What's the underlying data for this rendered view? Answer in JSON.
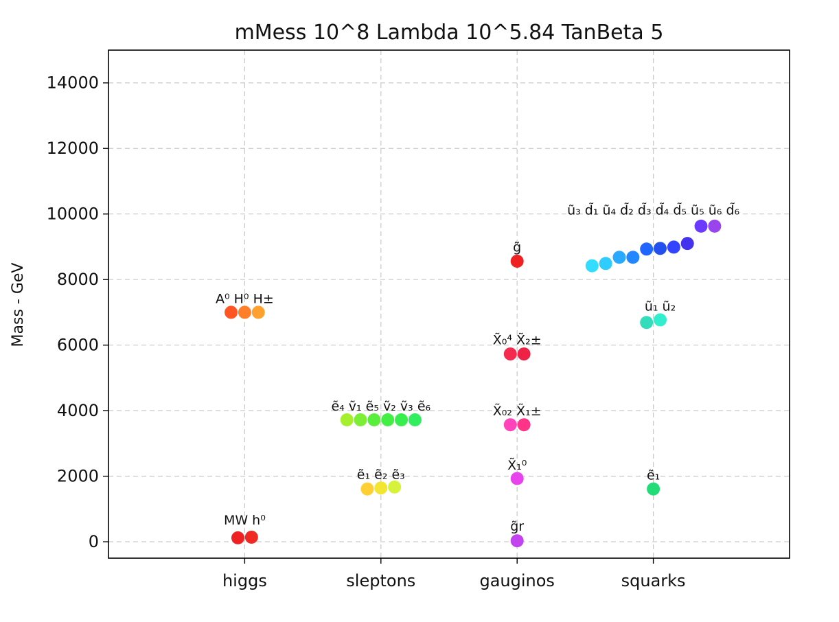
{
  "chart_data": {
    "type": "scatter",
    "title": "mMess  10^8 Lambda 10^5.84 TanBeta 5",
    "ylabel": "Mass - GeV",
    "xlabel": "",
    "categories": [
      "higgs",
      "sleptons",
      "gauginos",
      "squarks"
    ],
    "xlim": [
      -1,
      4
    ],
    "ylim": [
      -500,
      15000
    ],
    "yticks": [
      0,
      2000,
      4000,
      6000,
      8000,
      10000,
      12000,
      14000
    ],
    "grid": true,
    "groups": [
      {
        "category": "higgs",
        "labels": [
          {
            "text": "A⁰ H⁰ H±",
            "x": 0.0,
            "y": 7280
          },
          {
            "text": "MW h⁰",
            "x": 0.0,
            "y": 530
          }
        ],
        "points": [
          {
            "x": -0.1,
            "y": 7000,
            "color": "#ff5522"
          },
          {
            "x": 0.0,
            "y": 7000,
            "color": "#ff7f2a"
          },
          {
            "x": 0.1,
            "y": 7000,
            "color": "#ffa12e"
          },
          {
            "x": -0.05,
            "y": 120,
            "color": "#ee2222"
          },
          {
            "x": 0.05,
            "y": 140,
            "color": "#ee2a22"
          }
        ]
      },
      {
        "category": "sleptons",
        "labels": [
          {
            "text": "ẽ₄ ṽ₁ ẽ₅ ṽ₂ ṽ₃ ẽ₆",
            "x": 1.0,
            "y": 4000
          },
          {
            "text": "ẽ₁ ẽ₂ ẽ₃",
            "x": 1.0,
            "y": 1920
          }
        ],
        "points": [
          {
            "x": 0.75,
            "y": 3720,
            "color": "#a6ef2e"
          },
          {
            "x": 0.85,
            "y": 3720,
            "color": "#7bee35"
          },
          {
            "x": 0.95,
            "y": 3720,
            "color": "#5aee3c"
          },
          {
            "x": 1.05,
            "y": 3720,
            "color": "#44ee44"
          },
          {
            "x": 1.15,
            "y": 3720,
            "color": "#38ee4f"
          },
          {
            "x": 1.25,
            "y": 3720,
            "color": "#30ee5e"
          },
          {
            "x": 0.9,
            "y": 1610,
            "color": "#ffcf33"
          },
          {
            "x": 1.0,
            "y": 1640,
            "color": "#f2e633"
          },
          {
            "x": 1.1,
            "y": 1670,
            "color": "#d6f23a"
          }
        ]
      },
      {
        "category": "gauginos",
        "labels": [
          {
            "text": "g̃",
            "x": 2.0,
            "y": 8850
          },
          {
            "text": "X̃₀⁴ X̃₂±",
            "x": 2.0,
            "y": 6020
          },
          {
            "text": "X̃₀₂ X̃₁±",
            "x": 2.0,
            "y": 3860
          },
          {
            "text": "X̃₁⁰",
            "x": 2.0,
            "y": 2200
          },
          {
            "text": "g̃r",
            "x": 2.0,
            "y": 340
          }
        ],
        "points": [
          {
            "x": 2.0,
            "y": 8560,
            "color": "#ee2222"
          },
          {
            "x": 1.95,
            "y": 5730,
            "color": "#f52a4f"
          },
          {
            "x": 2.05,
            "y": 5730,
            "color": "#ee2244"
          },
          {
            "x": 1.95,
            "y": 3570,
            "color": "#ff44bb"
          },
          {
            "x": 2.05,
            "y": 3570,
            "color": "#ff3388"
          },
          {
            "x": 2.0,
            "y": 1930,
            "color": "#e844ee"
          },
          {
            "x": 2.0,
            "y": 30,
            "color": "#c144ee"
          }
        ]
      },
      {
        "category": "squarks",
        "labels": [
          {
            "text": "ũ₃ d̃₁ ũ₄ d̃₂ d̃₃ d̃₄ d̃₅ ũ₅ ũ₆ d̃₆",
            "x": 3.0,
            "y": 9980
          },
          {
            "text": "ũ₁ ũ₂",
            "x": 3.05,
            "y": 7050
          },
          {
            "text": "ẽ₁",
            "x": 3.0,
            "y": 1900
          }
        ],
        "points": [
          {
            "x": 2.55,
            "y": 8420,
            "color": "#33ddff"
          },
          {
            "x": 2.65,
            "y": 8490,
            "color": "#2fccff"
          },
          {
            "x": 2.75,
            "y": 8680,
            "color": "#2aaaff"
          },
          {
            "x": 2.85,
            "y": 8680,
            "color": "#2288ff"
          },
          {
            "x": 2.95,
            "y": 8930,
            "color": "#1f66ff"
          },
          {
            "x": 3.05,
            "y": 8950,
            "color": "#2250ee"
          },
          {
            "x": 3.15,
            "y": 8990,
            "color": "#3344ff"
          },
          {
            "x": 3.25,
            "y": 9100,
            "color": "#4433ee"
          },
          {
            "x": 3.35,
            "y": 9630,
            "color": "#6a3aff"
          },
          {
            "x": 3.45,
            "y": 9630,
            "color": "#9a44ee"
          },
          {
            "x": 2.95,
            "y": 6690,
            "color": "#33ddbb"
          },
          {
            "x": 3.05,
            "y": 6770,
            "color": "#33eecc"
          },
          {
            "x": 3.0,
            "y": 1610,
            "color": "#22dd77"
          }
        ]
      }
    ]
  }
}
